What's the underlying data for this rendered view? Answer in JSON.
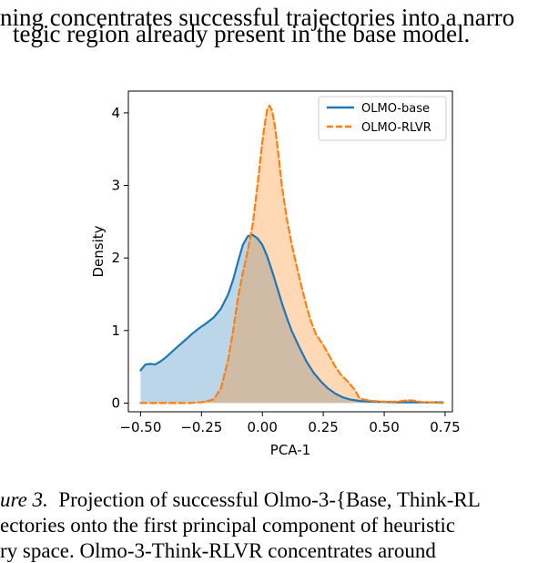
{
  "text_top": {
    "line1": "ning concentrates successful trajectories into a narro",
    "line2": "tegic region already present in the base model."
  },
  "caption": {
    "label": "ure 3.",
    "line1": "Projection of successful Olmo-3-{Base, Think-RL",
    "line2": "ectories  onto  the  first  principal  component  of  heuristic",
    "line3": "ry  space.    Olmo-3-Think-RLVR  concentrates  around"
  },
  "chart_data": {
    "type": "area",
    "xlabel": "PCA-1",
    "ylabel": "Density",
    "xlim": [
      -0.55,
      0.78
    ],
    "ylim": [
      -0.12,
      4.3
    ],
    "xticks": [
      -0.5,
      -0.25,
      0.0,
      0.25,
      0.5,
      0.75
    ],
    "xtick_labels": [
      "−0.50",
      "−0.25",
      "0.00",
      "0.25",
      "0.50",
      "0.75"
    ],
    "yticks": [
      0,
      1,
      2,
      3,
      4
    ],
    "ytick_labels": [
      "0",
      "1",
      "2",
      "3",
      "4"
    ],
    "legend_position": "top-right",
    "grid": false,
    "series": [
      {
        "name": "OLMO-base",
        "color": "#1f77b4",
        "fill": "#b6d3ea",
        "dash": "solid",
        "x": [
          -0.5,
          -0.48,
          -0.46,
          -0.44,
          -0.42,
          -0.4,
          -0.38,
          -0.35,
          -0.32,
          -0.29,
          -0.26,
          -0.23,
          -0.2,
          -0.17,
          -0.14,
          -0.12,
          -0.1,
          -0.08,
          -0.06,
          -0.04,
          -0.02,
          0.0,
          0.02,
          0.04,
          0.06,
          0.08,
          0.1,
          0.12,
          0.15,
          0.18,
          0.21,
          0.24,
          0.27,
          0.3,
          0.33,
          0.36,
          0.4,
          0.45,
          0.5,
          0.55,
          0.6,
          0.65,
          0.7,
          0.74
        ],
        "y": [
          0.45,
          0.53,
          0.54,
          0.53,
          0.57,
          0.62,
          0.68,
          0.77,
          0.86,
          0.95,
          1.03,
          1.1,
          1.18,
          1.3,
          1.5,
          1.7,
          1.95,
          2.18,
          2.3,
          2.32,
          2.27,
          2.18,
          2.02,
          1.82,
          1.6,
          1.38,
          1.18,
          1.0,
          0.78,
          0.58,
          0.42,
          0.3,
          0.2,
          0.13,
          0.08,
          0.05,
          0.03,
          0.02,
          0.015,
          0.01,
          0.01,
          0.01,
          0.01,
          0.01
        ]
      },
      {
        "name": "OLMO-RLVR",
        "color": "#ff7f0e",
        "fill": "#fdd3ad",
        "dash": "dashed",
        "x": [
          -0.5,
          -0.4,
          -0.3,
          -0.25,
          -0.2,
          -0.17,
          -0.14,
          -0.12,
          -0.1,
          -0.08,
          -0.06,
          -0.04,
          -0.02,
          0.0,
          0.01,
          0.02,
          0.03,
          0.04,
          0.05,
          0.06,
          0.07,
          0.08,
          0.1,
          0.12,
          0.14,
          0.16,
          0.18,
          0.2,
          0.22,
          0.25,
          0.28,
          0.3,
          0.32,
          0.35,
          0.38,
          0.4,
          0.45,
          0.5,
          0.55,
          0.6,
          0.63,
          0.66,
          0.7,
          0.74
        ],
        "y": [
          0.0,
          0.0,
          0.0,
          0.01,
          0.05,
          0.2,
          0.6,
          1.0,
          1.45,
          1.8,
          2.1,
          2.45,
          3.0,
          3.6,
          3.85,
          4.05,
          4.1,
          4.03,
          3.85,
          3.6,
          3.3,
          3.0,
          2.55,
          2.2,
          1.9,
          1.62,
          1.35,
          1.12,
          0.95,
          0.8,
          0.62,
          0.5,
          0.4,
          0.3,
          0.18,
          0.06,
          0.03,
          0.02,
          0.02,
          0.04,
          0.03,
          0.01,
          0.01,
          0.0
        ]
      }
    ]
  }
}
